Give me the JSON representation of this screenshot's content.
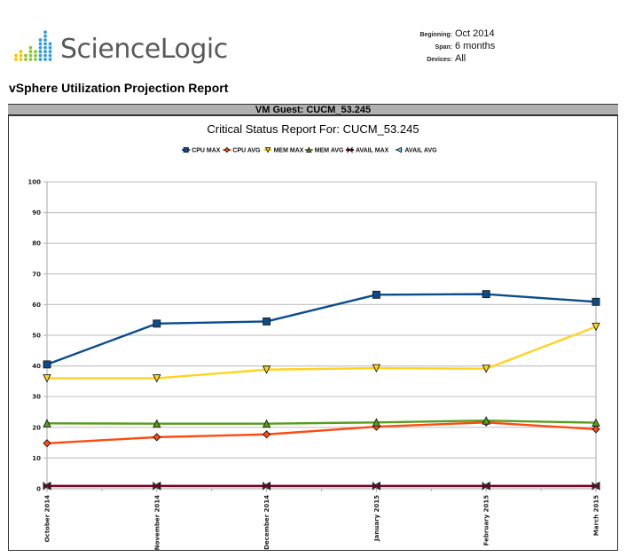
{
  "brand": {
    "name": "ScienceLogic"
  },
  "meta": {
    "beginning_label": "Beginning:",
    "beginning_value": "Oct 2014",
    "span_label": "Span:",
    "span_value": "6 months",
    "devices_label": "Devices:",
    "devices_value": "All"
  },
  "report_title": "vSphere Utilization Projection Report",
  "guest_header": "VM Guest: CUCM_53.245",
  "chart_data": {
    "type": "line",
    "title": "Critical Status Report For: CUCM_53.245",
    "xlabel": "",
    "ylabel": "",
    "ylim": [
      0,
      100
    ],
    "yticks": [
      0,
      10,
      20,
      30,
      40,
      50,
      60,
      70,
      80,
      90,
      100
    ],
    "grid": true,
    "legend_position": "top-center",
    "categories": [
      "October 2014",
      "November 2014",
      "December 2014",
      "January 2015",
      "February 2015",
      "March 2015"
    ],
    "series": [
      {
        "name": "CPU MAX",
        "color": "#0b4c8c",
        "marker": "square",
        "values": [
          40.5,
          53.8,
          54.5,
          63.2,
          63.4,
          60.9
        ]
      },
      {
        "name": "CPU AVG",
        "color": "#ff4a12",
        "marker": "diamond",
        "values": [
          14.8,
          16.8,
          17.7,
          20.2,
          21.6,
          19.4
        ]
      },
      {
        "name": "MEM MAX",
        "color": "#ffd320",
        "marker": "triangle-down",
        "values": [
          36.0,
          36.0,
          38.8,
          39.3,
          39.1,
          52.8
        ]
      },
      {
        "name": "MEM AVG",
        "color": "#579d1c",
        "marker": "triangle-up",
        "values": [
          21.3,
          21.2,
          21.2,
          21.6,
          22.2,
          21.5
        ]
      },
      {
        "name": "AVAIL MAX",
        "color": "#7e0021",
        "marker": "bowtie",
        "values": [
          0.9,
          0.9,
          0.9,
          0.9,
          0.9,
          0.9
        ]
      },
      {
        "name": "AVAIL AVG",
        "color": "#83caff",
        "marker": "triangle-left",
        "values": [
          0.9,
          0.9,
          0.9,
          0.9,
          0.9,
          0.9
        ]
      }
    ]
  }
}
